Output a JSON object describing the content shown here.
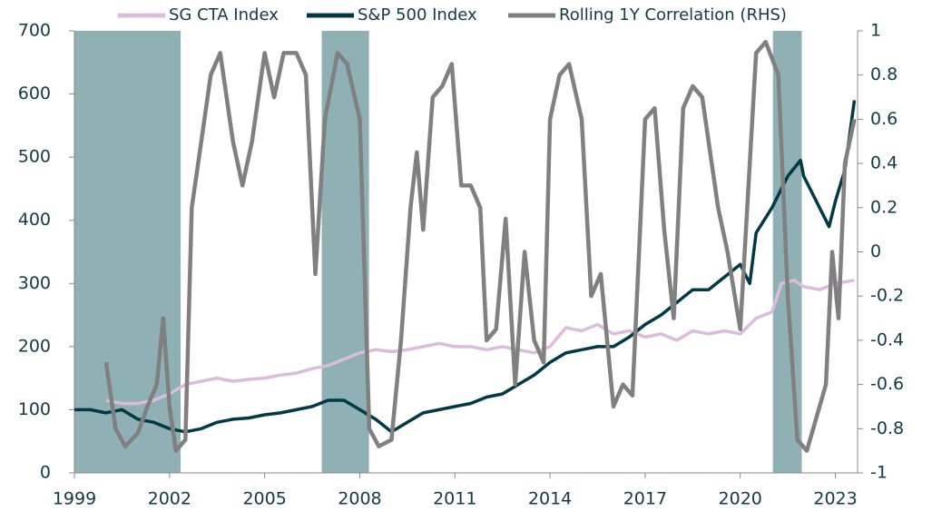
{
  "chart_data": {
    "type": "line",
    "xlim": [
      1999,
      2023.7
    ],
    "xticks": [
      1999,
      2002,
      2005,
      2008,
      2011,
      2014,
      2017,
      2020,
      2023
    ],
    "ylim": [
      0,
      700
    ],
    "yticks": [
      0,
      100,
      200,
      300,
      400,
      500,
      600,
      700
    ],
    "y2lim": [
      -1,
      1
    ],
    "y2ticks": [
      -1,
      -0.8,
      -0.6,
      -0.4,
      -0.2,
      0,
      0.2,
      0.4,
      0.6,
      0.8,
      1
    ],
    "legend": "top",
    "shaded_periods": {
      "color": "#8fb0b4",
      "ranges": [
        [
          1999,
          2002.35
        ],
        [
          2006.8,
          2008.29
        ],
        [
          2021.03,
          2021.94
        ]
      ]
    },
    "series": [
      {
        "name": "SG CTA Index",
        "color": "#dcbcdc",
        "x": [
          2000,
          2000.5,
          2001,
          2001.5,
          2002,
          2002.5,
          2003,
          2003.5,
          2004,
          2004.5,
          2005,
          2005.5,
          2006,
          2006.5,
          2007,
          2007.5,
          2008,
          2008.5,
          2009,
          2009.5,
          2010,
          2010.5,
          2011,
          2011.5,
          2012,
          2012.5,
          2013,
          2013.5,
          2014,
          2014.5,
          2015,
          2015.5,
          2016,
          2016.5,
          2017,
          2017.5,
          2018,
          2018.5,
          2019,
          2019.5,
          2020,
          2020.5,
          2021,
          2021.3,
          2021.7,
          2022,
          2022.5,
          2023,
          2023.6
        ],
        "values": [
          115,
          110,
          110,
          115,
          125,
          140,
          145,
          150,
          145,
          148,
          150,
          155,
          158,
          165,
          170,
          180,
          190,
          195,
          192,
          195,
          200,
          205,
          200,
          200,
          195,
          200,
          195,
          190,
          200,
          230,
          225,
          235,
          220,
          225,
          215,
          220,
          210,
          225,
          220,
          225,
          220,
          245,
          255,
          300,
          305,
          295,
          290,
          300,
          305
        ]
      },
      {
        "name": "S&P 500 Index",
        "color": "#003a45",
        "x": [
          1999,
          1999.5,
          2000,
          2000.5,
          2001,
          2001.5,
          2002,
          2002.5,
          2003,
          2003.5,
          2004,
          2004.5,
          2005,
          2005.5,
          2006,
          2006.5,
          2007,
          2007.5,
          2008,
          2008.5,
          2009,
          2009.5,
          2010,
          2010.5,
          2011,
          2011.5,
          2012,
          2012.5,
          2013,
          2013.5,
          2014,
          2014.5,
          2015,
          2015.5,
          2016,
          2016.5,
          2017,
          2017.5,
          2018,
          2018.5,
          2019,
          2019.5,
          2020,
          2020.3,
          2020.5,
          2021,
          2021.5,
          2021.9,
          2022,
          2022.5,
          2022.8,
          2023,
          2023.3,
          2023.6
        ],
        "values": [
          100,
          100,
          95,
          100,
          85,
          80,
          70,
          65,
          70,
          80,
          85,
          87,
          92,
          95,
          100,
          105,
          115,
          115,
          100,
          85,
          65,
          80,
          95,
          100,
          105,
          110,
          120,
          125,
          140,
          155,
          175,
          190,
          195,
          200,
          200,
          215,
          235,
          250,
          270,
          290,
          290,
          310,
          330,
          300,
          380,
          420,
          470,
          495,
          470,
          420,
          390,
          430,
          480,
          590
        ]
      },
      {
        "name": "Rolling 1Y Correlation (RHS)",
        "color": "#808080",
        "axis": "y2",
        "x": [
          2000,
          2000.3,
          2000.6,
          2001,
          2001.3,
          2001.6,
          2001.8,
          2002,
          2002.2,
          2002.5,
          2002.7,
          2003,
          2003.3,
          2003.6,
          2004,
          2004.3,
          2004.6,
          2005,
          2005.3,
          2005.6,
          2006,
          2006.3,
          2006.6,
          2006.9,
          2007.3,
          2007.6,
          2008,
          2008.3,
          2008.6,
          2009,
          2009.3,
          2009.6,
          2009.8,
          2010,
          2010.3,
          2010.6,
          2010.9,
          2011.2,
          2011.5,
          2011.8,
          2012,
          2012.3,
          2012.6,
          2012.9,
          2013.2,
          2013.5,
          2013.8,
          2014,
          2014.3,
          2014.6,
          2015,
          2015.3,
          2015.6,
          2016,
          2016.3,
          2016.6,
          2017,
          2017.3,
          2017.6,
          2017.9,
          2018.2,
          2018.5,
          2018.8,
          2019,
          2019.3,
          2019.6,
          2020,
          2020.3,
          2020.5,
          2020.8,
          2021.2,
          2021.5,
          2021.8,
          2022.1,
          2022.4,
          2022.7,
          2022.9,
          2023.1,
          2023.3,
          2023.6
        ],
        "values": [
          -0.5,
          -0.8,
          -0.88,
          -0.82,
          -0.7,
          -0.6,
          -0.3,
          -0.7,
          -0.9,
          -0.85,
          0.2,
          0.5,
          0.8,
          0.9,
          0.5,
          0.3,
          0.5,
          0.9,
          0.7,
          0.9,
          0.9,
          0.8,
          -0.1,
          0.6,
          0.9,
          0.85,
          0.6,
          -0.8,
          -0.88,
          -0.85,
          -0.4,
          0.2,
          0.45,
          0.1,
          0.7,
          0.75,
          0.85,
          0.3,
          0.3,
          0.2,
          -0.4,
          -0.35,
          0.15,
          -0.6,
          0.0,
          -0.4,
          -0.5,
          0.6,
          0.8,
          0.85,
          0.6,
          -0.2,
          -0.1,
          -0.7,
          -0.6,
          -0.65,
          0.6,
          0.65,
          0.1,
          -0.3,
          0.65,
          0.75,
          0.7,
          0.5,
          0.2,
          0.0,
          -0.35,
          0.4,
          0.9,
          0.95,
          0.8,
          -0.2,
          -0.85,
          -0.9,
          -0.75,
          -0.6,
          0.0,
          -0.3,
          0.4,
          0.6
        ]
      }
    ]
  }
}
